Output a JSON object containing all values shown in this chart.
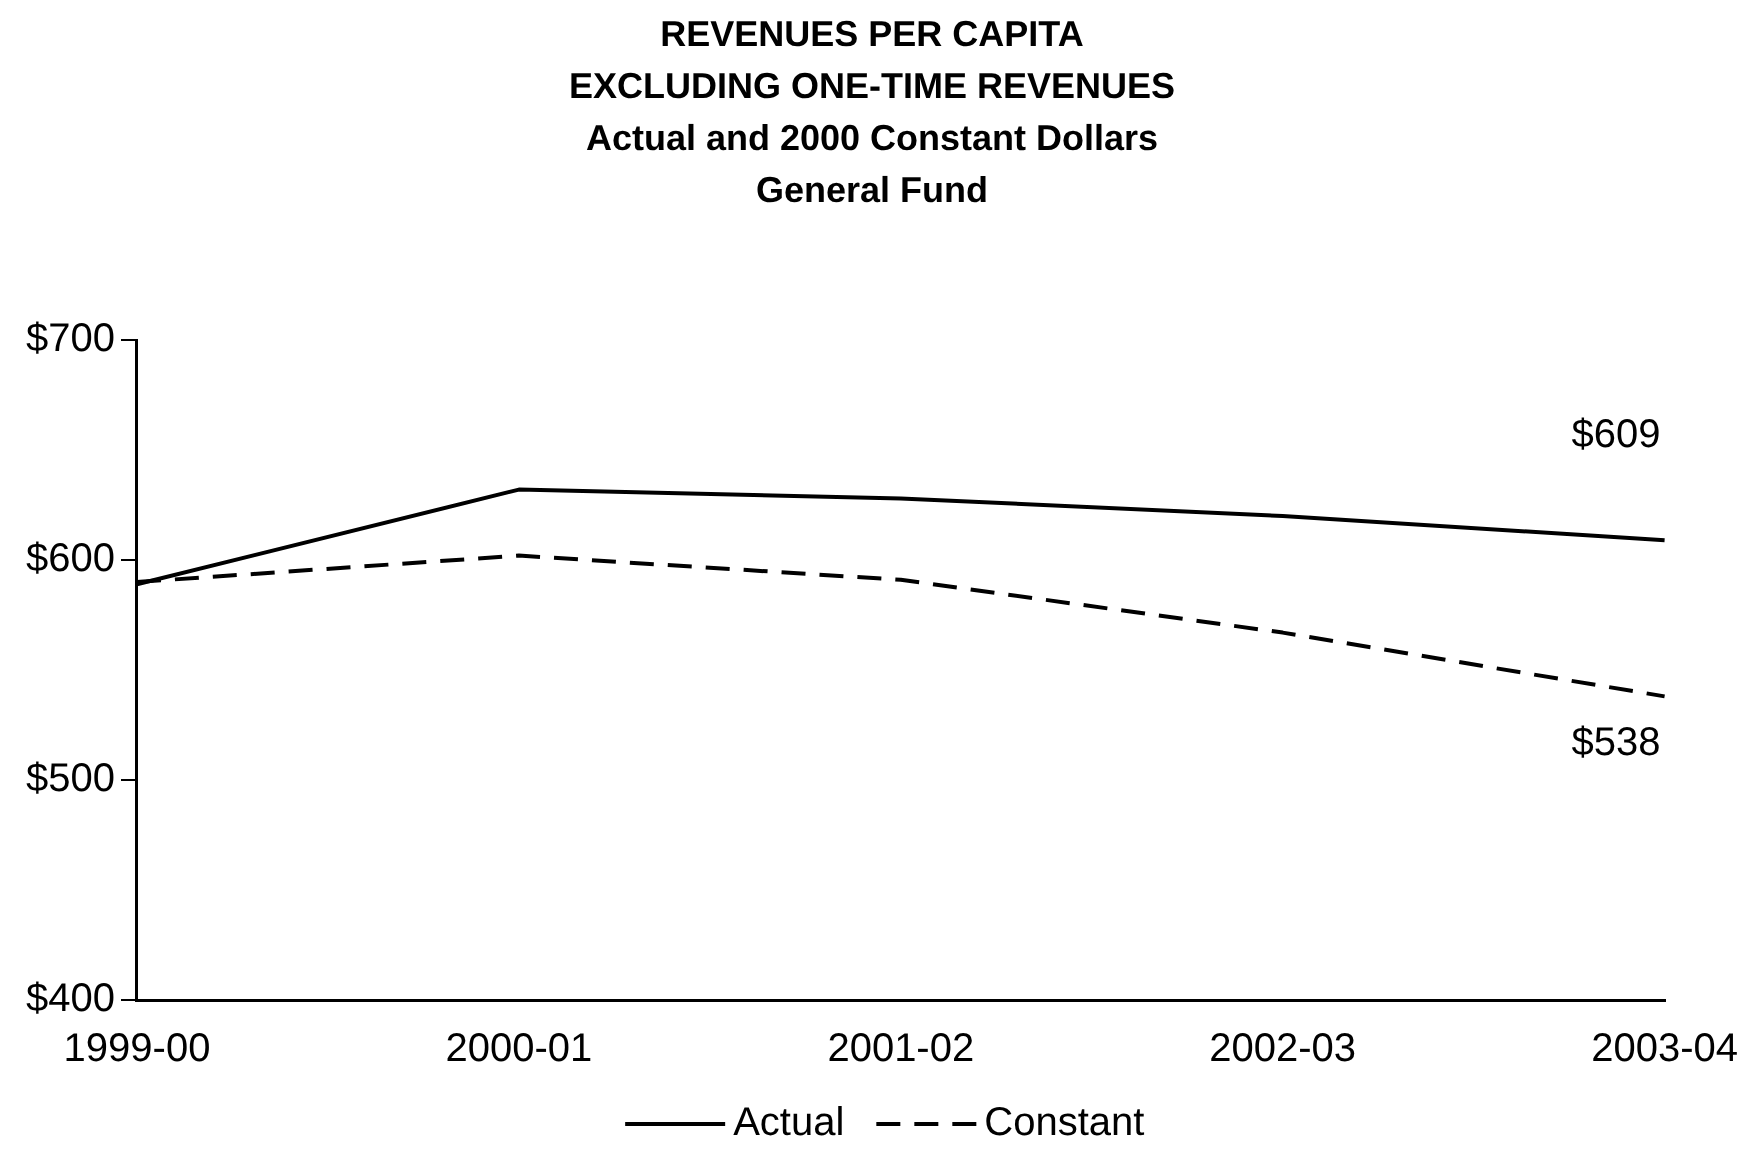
{
  "chart_data": {
    "type": "line",
    "title": "REVENUES PER CAPITA\nEXCLUDING ONE-TIME REVENUES",
    "subtitle": "Actual and 2000 Constant Dollars\nGeneral Fund",
    "categories": [
      "1999-00",
      "2000-01",
      "2001-02",
      "2002-03",
      "2003-04"
    ],
    "series": [
      {
        "name": "Actual",
        "color": "#000000",
        "values": [
          589,
          632,
          628,
          620,
          609
        ],
        "line_style": "solid"
      },
      {
        "name": "Constant",
        "color": "#000000",
        "values": [
          590,
          602,
          591,
          567,
          538
        ],
        "line_style": "dashed"
      }
    ],
    "ylim": [
      400,
      700
    ],
    "yticks": [
      {
        "value": 400,
        "label": "$400"
      },
      {
        "value": 500,
        "label": "$500"
      },
      {
        "value": 600,
        "label": "$600"
      },
      {
        "value": 700,
        "label": "$700"
      }
    ],
    "annotations": [
      {
        "text": "$609",
        "x": "2003-04",
        "y": 609
      },
      {
        "text": "$538",
        "x": "2003-04",
        "y": 538
      }
    ],
    "grid": false,
    "legend": "bottom",
    "marker": "none"
  }
}
